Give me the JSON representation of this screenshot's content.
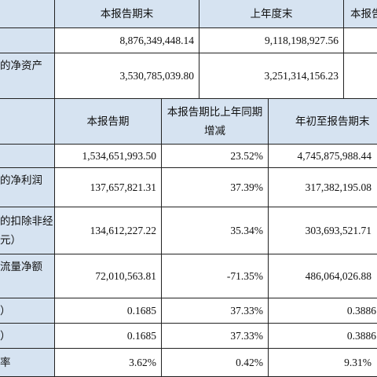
{
  "table1": {
    "headers": [
      "本报告期末",
      "上年度末",
      "本报告"
    ],
    "rows": [
      {
        "label": "",
        "current": "8,876,349,448.14",
        "prior": "9,118,198,927.56"
      },
      {
        "label": "的净资产",
        "current": "3,530,785,039.80",
        "prior": "3,251,314,156.23"
      }
    ]
  },
  "table2": {
    "headers": [
      "本报告期",
      "本报告期比上年同期增减",
      "年初至报告期末"
    ],
    "rows": [
      {
        "label": "",
        "period": "1,534,651,993.50",
        "change": "23.52%",
        "ytd": "4,745,875,988.44"
      },
      {
        "label": "的净利润",
        "period": "137,657,821.31",
        "change": "37.39%",
        "ytd": "317,382,195.08"
      },
      {
        "label": "的扣除非经\n元）",
        "period": "134,612,227.22",
        "change": "35.34%",
        "ytd": "303,693,521.71"
      },
      {
        "label": "流量净额",
        "period": "72,010,563.81",
        "change": "-71.35%",
        "ytd": "486,064,026.88"
      },
      {
        "label": "）",
        "period": "0.1685",
        "change": "37.33%",
        "ytd": "0.3886"
      },
      {
        "label": "）",
        "period": "0.1685",
        "change": "37.33%",
        "ytd": "0.3886"
      },
      {
        "label": "率",
        "period": "3.62%",
        "change": "0.42%",
        "ytd": "9.31%"
      }
    ]
  }
}
